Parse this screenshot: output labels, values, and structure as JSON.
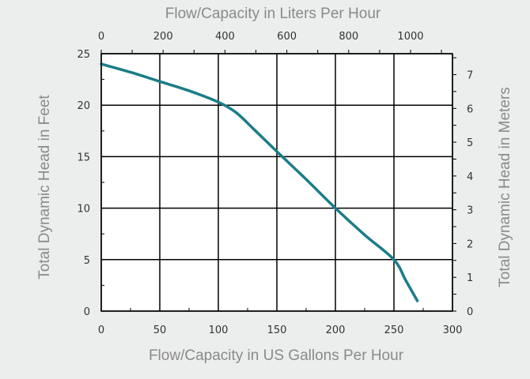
{
  "chart_data": {
    "type": "line",
    "title": "",
    "xlabel": "Flow/Capacity in US Gallons Per Hour",
    "ylabel": "Total Dynamic Head in Feet",
    "x2label": "Flow/Capacity in Liters Per Hour",
    "y2label": "Total Dynamic Head in Meters",
    "xlim": [
      0,
      300
    ],
    "ylim": [
      0,
      25
    ],
    "x2lim": [
      0,
      1135.6
    ],
    "y2lim": [
      0,
      7.62
    ],
    "xticks": [
      "0",
      "50",
      "100",
      "150",
      "200",
      "250",
      "300"
    ],
    "yticks": [
      "0",
      "5",
      "10",
      "15",
      "20",
      "25"
    ],
    "x2ticks": [
      "0",
      "200",
      "400",
      "600",
      "800",
      "1000"
    ],
    "y2ticks": [
      "0",
      "1",
      "2",
      "3",
      "4",
      "5",
      "6",
      "7"
    ],
    "grid": true,
    "series": [
      {
        "x": [
          0,
          25,
          50,
          75,
          100,
          115,
          130,
          150,
          175,
          200,
          225,
          250,
          260,
          270
        ],
        "y": [
          24,
          23.2,
          22.3,
          21.4,
          20.3,
          19.3,
          17.7,
          15.5,
          12.8,
          10.0,
          7.4,
          5.0,
          3.0,
          1.0
        ]
      }
    ],
    "colors": {
      "line": "#1b7d88",
      "grid": "#000000",
      "background": "#ffffff"
    }
  }
}
